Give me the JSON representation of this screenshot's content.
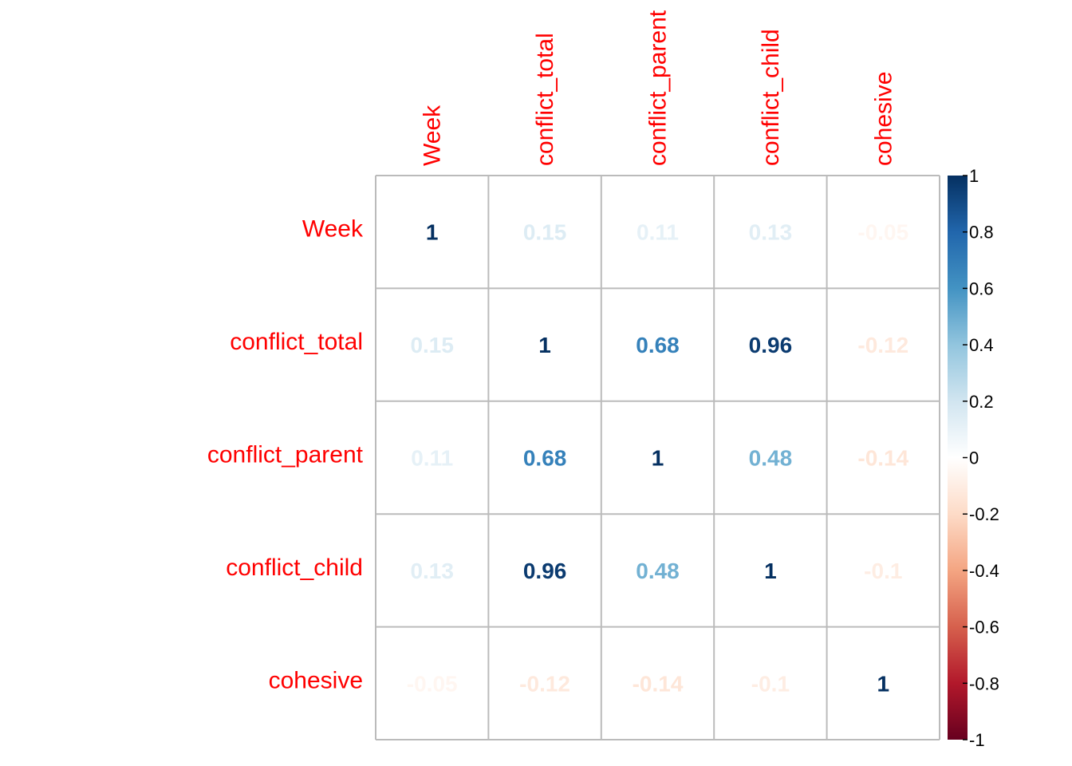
{
  "chart_data": {
    "type": "heatmap",
    "title": "",
    "variables": [
      "Week",
      "conflict_total",
      "conflict_parent",
      "conflict_child",
      "cohesive"
    ],
    "matrix": [
      [
        1,
        0.15,
        0.11,
        0.13,
        -0.05
      ],
      [
        0.15,
        1,
        0.68,
        0.96,
        -0.12
      ],
      [
        0.11,
        0.68,
        1,
        0.48,
        -0.14
      ],
      [
        0.13,
        0.96,
        0.48,
        1,
        -0.1
      ],
      [
        -0.05,
        -0.12,
        -0.14,
        -0.1,
        1
      ]
    ],
    "cell_labels": [
      [
        "1",
        "0.15",
        "0.11",
        "0.13",
        "-0.05"
      ],
      [
        "0.15",
        "1",
        "0.68",
        "0.96",
        "-0.12"
      ],
      [
        "0.11",
        "0.68",
        "1",
        "0.48",
        "-0.14"
      ],
      [
        "0.13",
        "0.96",
        "0.48",
        "1",
        "-0.1"
      ],
      [
        "-0.05",
        "-0.12",
        "-0.14",
        "-0.1",
        "1"
      ]
    ],
    "label_color": "#ff0000",
    "grid_color": "#bbbbbb",
    "colorbar": {
      "range": [
        -1,
        1
      ],
      "ticks": [
        1,
        0.8,
        0.6,
        0.4,
        0.2,
        0,
        -0.2,
        -0.4,
        -0.6,
        -0.8,
        -1
      ],
      "tick_labels": [
        "1",
        "0.8",
        "0.6",
        "0.4",
        "0.2",
        "0",
        "-0.2",
        "-0.4",
        "-0.6",
        "-0.8",
        "-1"
      ],
      "palette": [
        "#67001f",
        "#b2182b",
        "#d6604d",
        "#f4a582",
        "#fddbc7",
        "#ffffff",
        "#d1e5f0",
        "#92c5de",
        "#4393c3",
        "#2166ac",
        "#053061"
      ],
      "placement": "right"
    }
  }
}
